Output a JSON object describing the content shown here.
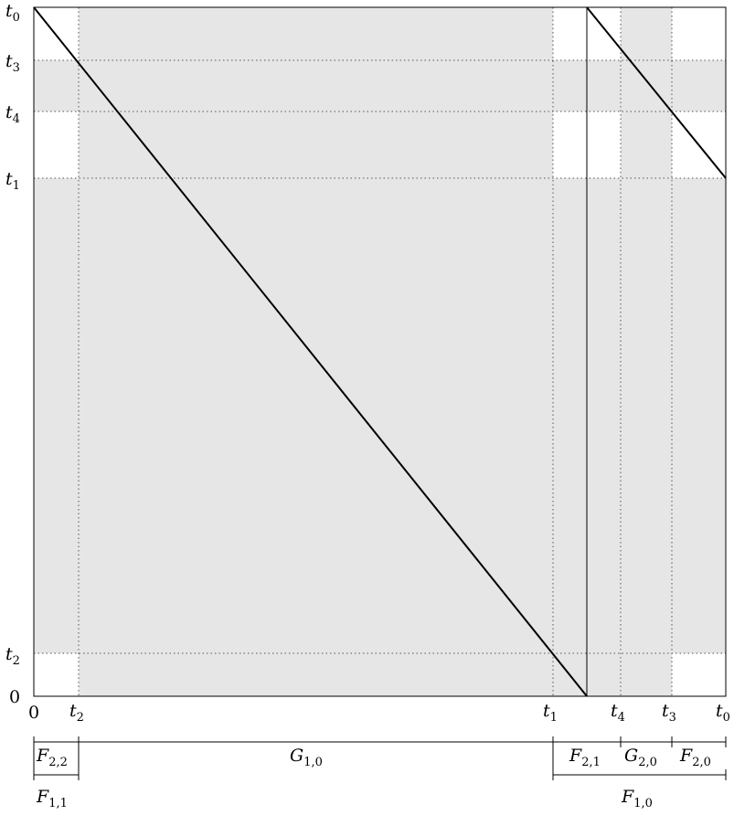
{
  "diagram": {
    "y_axis_labels": [
      {
        "base": "t",
        "sub": "0"
      },
      {
        "base": "t",
        "sub": "3"
      },
      {
        "base": "t",
        "sub": "4"
      },
      {
        "base": "t",
        "sub": "1"
      },
      {
        "base": "t",
        "sub": "2"
      },
      {
        "base": "",
        "sub": "",
        "plain": "0"
      }
    ],
    "x_axis_labels": [
      {
        "base": "",
        "sub": "",
        "plain": "0"
      },
      {
        "base": "t",
        "sub": "2"
      },
      {
        "base": "t",
        "sub": "1"
      },
      {
        "base": "t",
        "sub": "4"
      },
      {
        "base": "t",
        "sub": "3"
      },
      {
        "base": "t",
        "sub": "0"
      }
    ],
    "segment_labels_row1": [
      {
        "base": "F",
        "sub": "2,2"
      },
      {
        "base": "G",
        "sub": "1,0"
      },
      {
        "base": "F",
        "sub": "2,1"
      },
      {
        "base": "G",
        "sub": "2,0"
      },
      {
        "base": "F",
        "sub": "2,0"
      }
    ],
    "segment_labels_row2": [
      {
        "base": "F",
        "sub": "1,1"
      },
      {
        "base": "F",
        "sub": "1,0"
      }
    ],
    "colors": {
      "shade": "#e6e6e6",
      "line": "#000000",
      "grid": "#555555"
    }
  }
}
